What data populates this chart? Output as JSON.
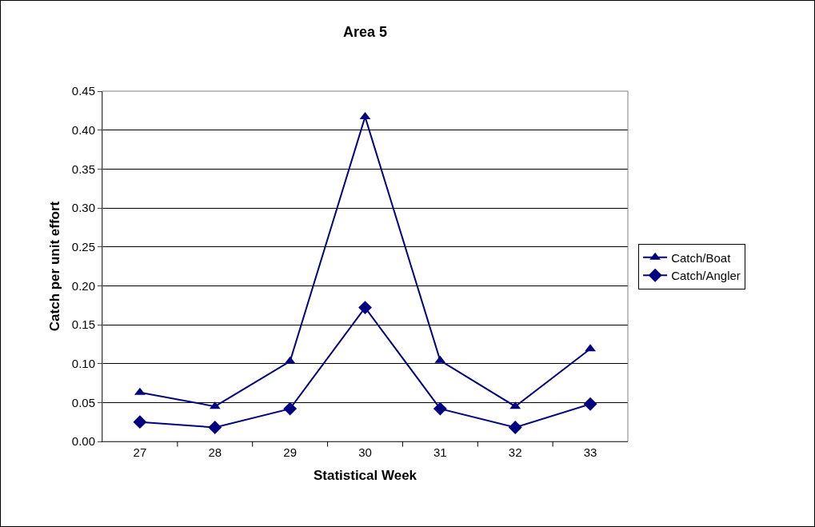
{
  "chart_data": {
    "type": "line",
    "title": "Area 5",
    "xlabel": "Statistical Week",
    "ylabel": "Catch per unit effort",
    "categories": [
      "27",
      "28",
      "29",
      "30",
      "31",
      "32",
      "33"
    ],
    "series": [
      {
        "name": "Catch/Boat",
        "color": "#000080",
        "marker": "triangle",
        "values": [
          0.063,
          0.045,
          0.103,
          0.417,
          0.104,
          0.045,
          0.119
        ]
      },
      {
        "name": "Catch/Angler",
        "color": "#000080",
        "marker": "diamond",
        "values": [
          0.025,
          0.018,
          0.042,
          0.172,
          0.042,
          0.018,
          0.048
        ]
      }
    ],
    "ylim": [
      0,
      0.45
    ],
    "yticks": [
      {
        "value": 0,
        "label": "0.00"
      },
      {
        "value": 0.05,
        "label": "0.05"
      },
      {
        "value": 0.1,
        "label": "0.10"
      },
      {
        "value": 0.15,
        "label": "0.15"
      },
      {
        "value": 0.2,
        "label": "0.20"
      },
      {
        "value": 0.25,
        "label": "0.25"
      },
      {
        "value": 0.3,
        "label": "0.30"
      },
      {
        "value": 0.35,
        "label": "0.35"
      },
      {
        "value": 0.4,
        "label": "0.40"
      },
      {
        "value": 0.45,
        "label": "0.45"
      }
    ],
    "grid": "y",
    "legend": "right",
    "line_style": "solid"
  }
}
